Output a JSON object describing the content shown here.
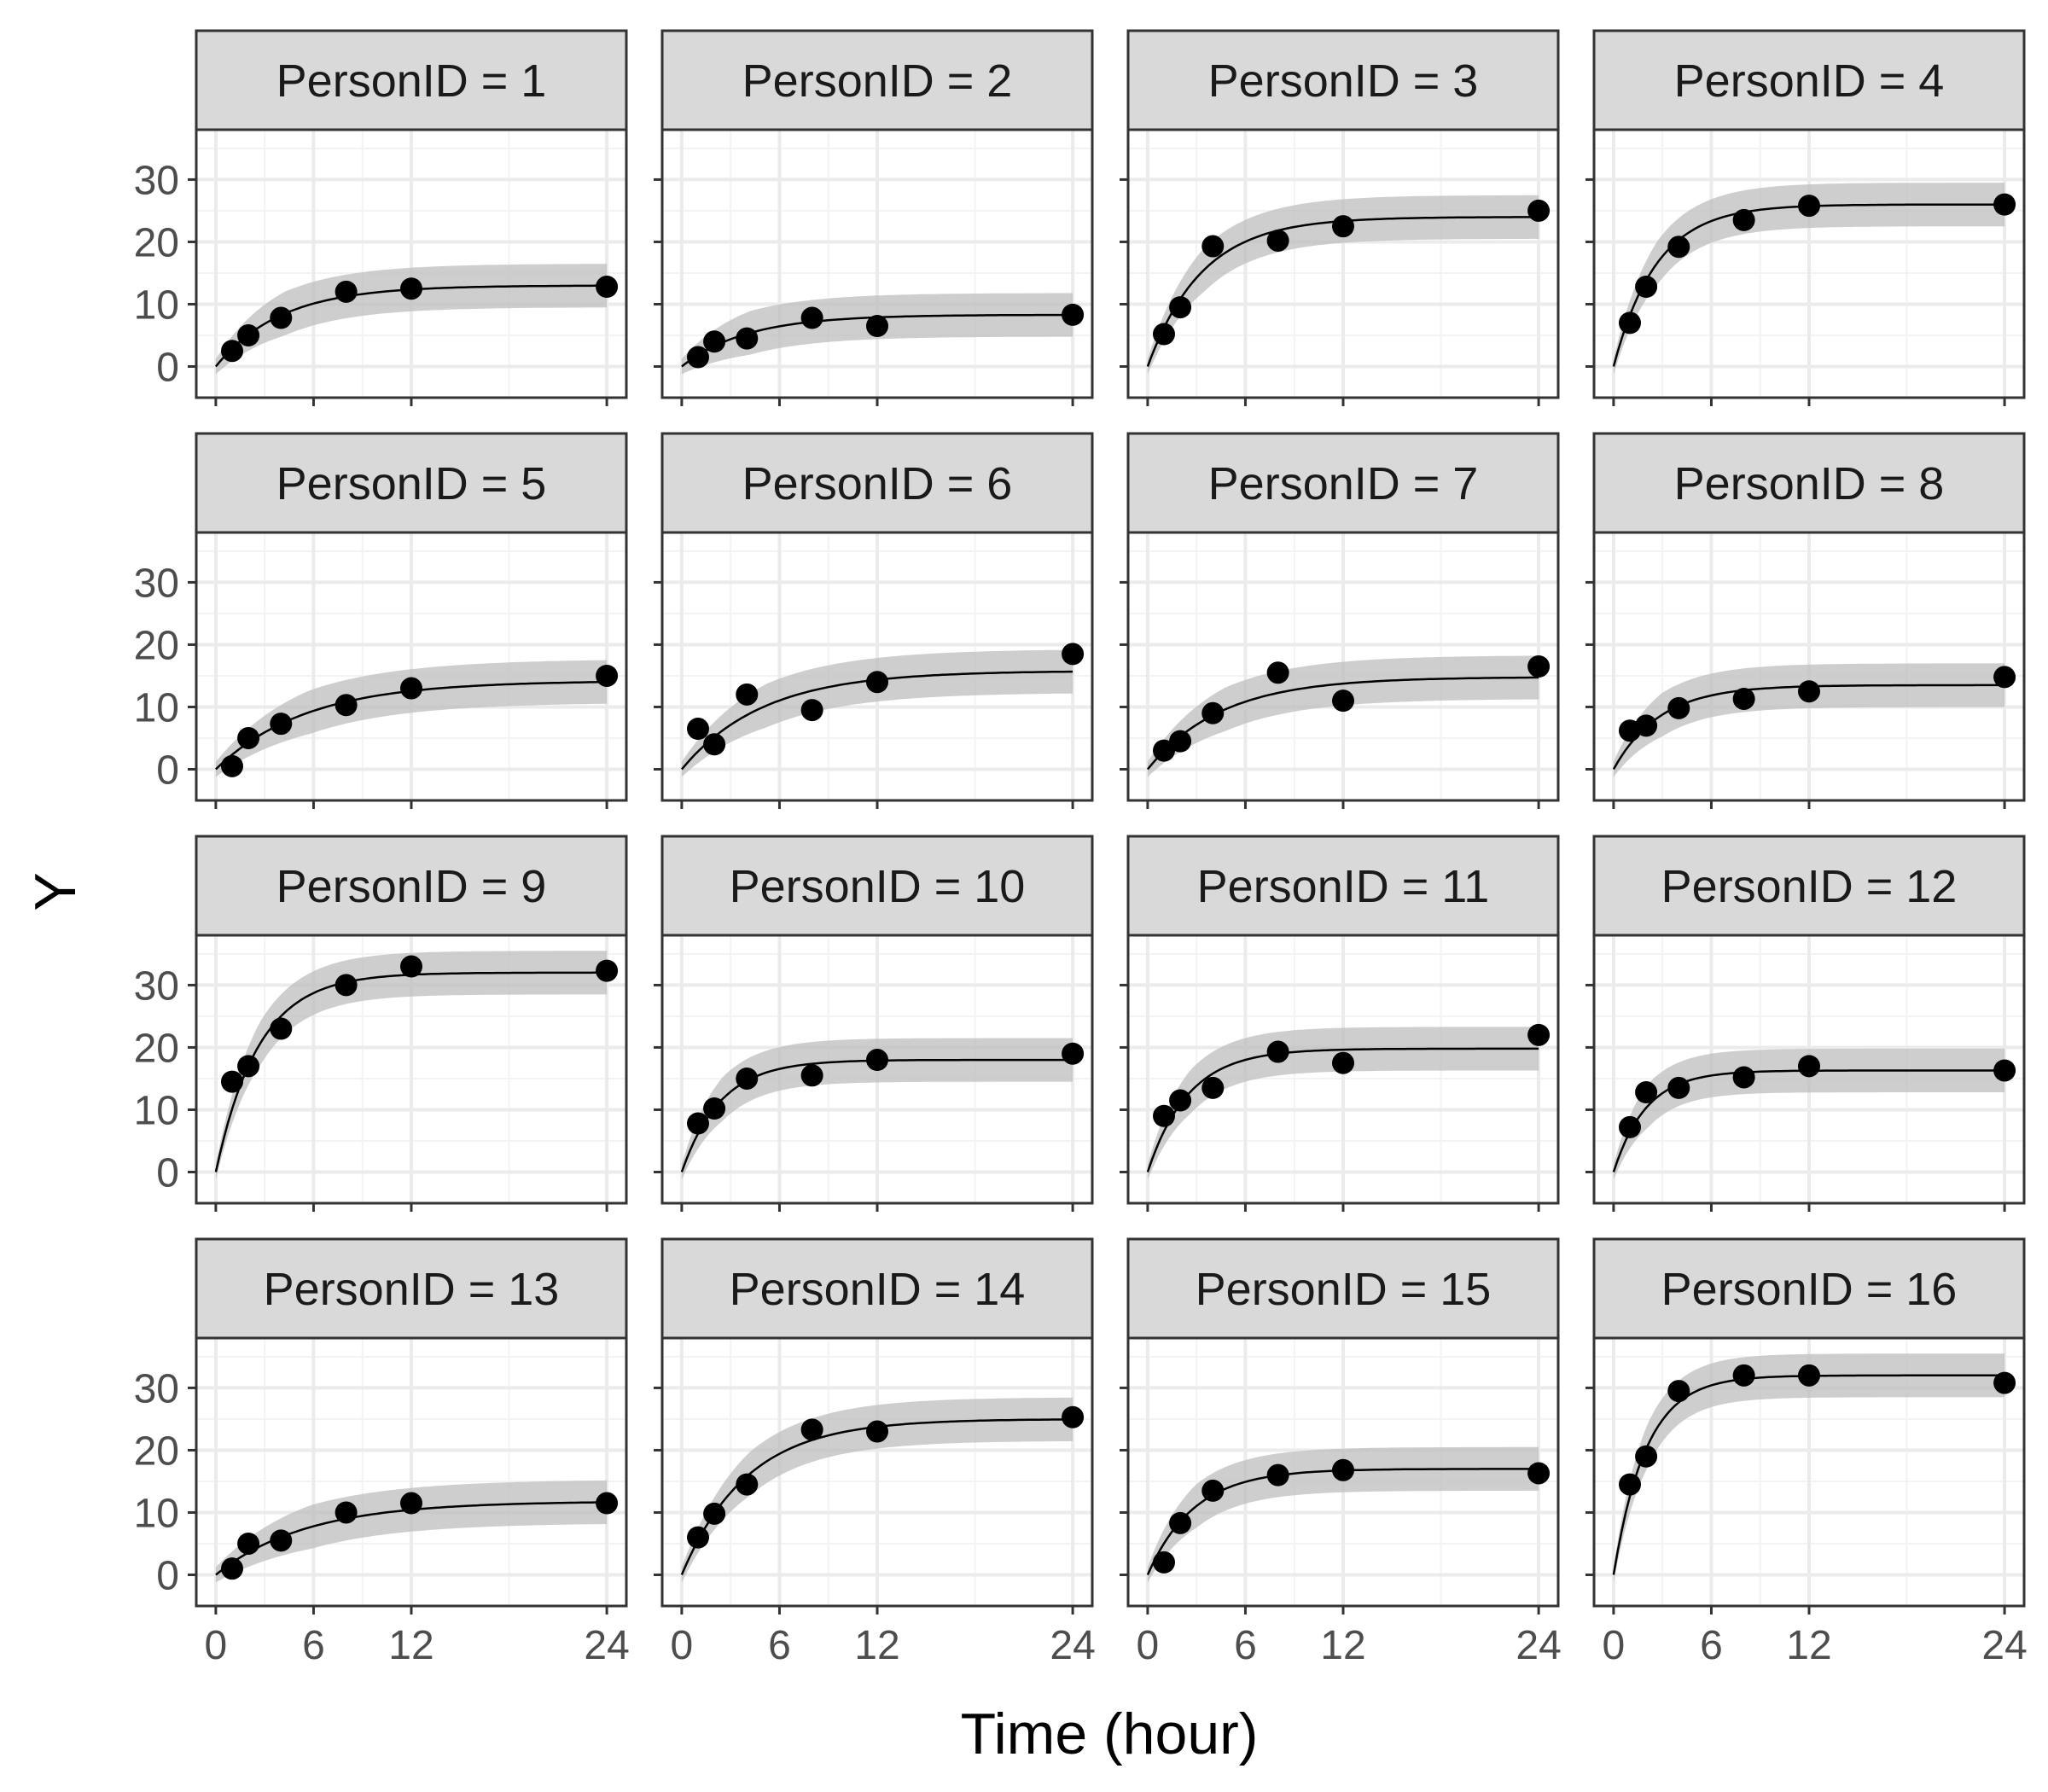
{
  "chart_data": {
    "type": "scatter",
    "layout": "facet-grid-4x4",
    "xlabel": "Time (hour)",
    "ylabel": "Y",
    "xlim": [
      -1.2,
      25.2
    ],
    "ylim": [
      -5,
      38
    ],
    "x_ticks": [
      0,
      6,
      12,
      24
    ],
    "x_tick_labels": [
      "0",
      "6",
      "12",
      "24"
    ],
    "y_ticks": [
      0,
      10,
      20,
      30
    ],
    "y_tick_labels": [
      "0",
      "10",
      "20",
      "30"
    ],
    "band_halfwidth": 3.5,
    "grid": true,
    "legend": "none",
    "colors": {
      "panel_border": "#333333",
      "strip_fill": "#d9d9d9",
      "grid_major": "#ebebeb",
      "grid_minor": "#f3f3f3",
      "band": "#bdbdbd",
      "line": "#000000",
      "points": "#000000"
    },
    "panels": [
      {
        "label": "PersonID = 1",
        "x": [
          1,
          2,
          4,
          8,
          12,
          24
        ],
        "y": [
          2.5,
          5,
          7.8,
          12,
          12.5,
          12.8
        ],
        "fit": {
          "asymptote": 13,
          "rate": 0.25
        }
      },
      {
        "label": "PersonID = 2",
        "x": [
          1,
          2,
          4,
          8,
          12,
          24
        ],
        "y": [
          1.5,
          4,
          4.5,
          7.8,
          6.5,
          8.3
        ],
        "fit": {
          "asymptote": 8.3,
          "rate": 0.25
        }
      },
      {
        "label": "PersonID = 3",
        "x": [
          1,
          2,
          4,
          8,
          12,
          24
        ],
        "y": [
          5.2,
          9.5,
          19.3,
          20.2,
          22.5,
          25
        ],
        "fit": {
          "asymptote": 24,
          "rate": 0.3
        }
      },
      {
        "label": "PersonID = 4",
        "x": [
          1,
          2,
          4,
          8,
          12,
          24
        ],
        "y": [
          7,
          12.8,
          19.2,
          23.5,
          25.8,
          26
        ],
        "fit": {
          "asymptote": 26,
          "rate": 0.38
        }
      },
      {
        "label": "PersonID = 5",
        "x": [
          1,
          2,
          4,
          8,
          12,
          24
        ],
        "y": [
          0.5,
          5,
          7.3,
          10.3,
          13,
          15
        ],
        "fit": {
          "asymptote": 14.2,
          "rate": 0.18
        }
      },
      {
        "label": "PersonID = 6",
        "x": [
          1,
          2,
          4,
          8,
          12,
          24
        ],
        "y": [
          6.5,
          4,
          12,
          9.5,
          14,
          18.5
        ],
        "fit": {
          "asymptote": 15.8,
          "rate": 0.2
        }
      },
      {
        "label": "PersonID = 7",
        "x": [
          1,
          2,
          4,
          8,
          12,
          24
        ],
        "y": [
          3,
          4.5,
          9,
          15.5,
          11,
          16.5
        ],
        "fit": {
          "asymptote": 14.8,
          "rate": 0.22
        }
      },
      {
        "label": "PersonID = 8",
        "x": [
          1,
          2,
          4,
          8,
          12,
          24
        ],
        "y": [
          6.2,
          7,
          9.8,
          11.3,
          12.5,
          14.8
        ],
        "fit": {
          "asymptote": 13.5,
          "rate": 0.35
        }
      },
      {
        "label": "PersonID = 9",
        "x": [
          1,
          2,
          4,
          8,
          12,
          24
        ],
        "y": [
          14.5,
          17,
          23,
          30,
          33,
          32.3
        ],
        "fit": {
          "asymptote": 32,
          "rate": 0.38
        }
      },
      {
        "label": "PersonID = 10",
        "x": [
          1,
          2,
          4,
          8,
          12,
          24
        ],
        "y": [
          7.8,
          10.2,
          15,
          15.5,
          18,
          19
        ],
        "fit": {
          "asymptote": 18,
          "rate": 0.42
        }
      },
      {
        "label": "PersonID = 11",
        "x": [
          1,
          2,
          4,
          8,
          12,
          24
        ],
        "y": [
          9,
          11.5,
          13.5,
          19.3,
          17.5,
          22
        ],
        "fit": {
          "asymptote": 19.8,
          "rate": 0.4
        }
      },
      {
        "label": "PersonID = 12",
        "x": [
          1,
          2,
          4,
          8,
          12,
          24
        ],
        "y": [
          7.2,
          12.8,
          13.5,
          15.2,
          17,
          16.3
        ],
        "fit": {
          "asymptote": 16.3,
          "rate": 0.5
        }
      },
      {
        "label": "PersonID = 13",
        "x": [
          1,
          2,
          4,
          8,
          12,
          24
        ],
        "y": [
          1,
          5,
          5.5,
          10,
          11.5,
          11.5
        ],
        "fit": {
          "asymptote": 11.8,
          "rate": 0.18
        }
      },
      {
        "label": "PersonID = 14",
        "x": [
          1,
          2,
          4,
          8,
          12,
          24
        ],
        "y": [
          6,
          9.8,
          14.5,
          23.3,
          23,
          25.3
        ],
        "fit": {
          "asymptote": 25,
          "rate": 0.25
        }
      },
      {
        "label": "PersonID = 15",
        "x": [
          1,
          2,
          4,
          8,
          12,
          24
        ],
        "y": [
          2,
          8.3,
          13.5,
          16,
          16.8,
          16.3
        ],
        "fit": {
          "asymptote": 17,
          "rate": 0.35
        }
      },
      {
        "label": "PersonID = 16",
        "x": [
          1,
          2,
          4,
          8,
          12,
          24
        ],
        "y": [
          14.5,
          19,
          29.5,
          32,
          32,
          30.8
        ],
        "fit": {
          "asymptote": 32,
          "rate": 0.5
        }
      }
    ]
  }
}
